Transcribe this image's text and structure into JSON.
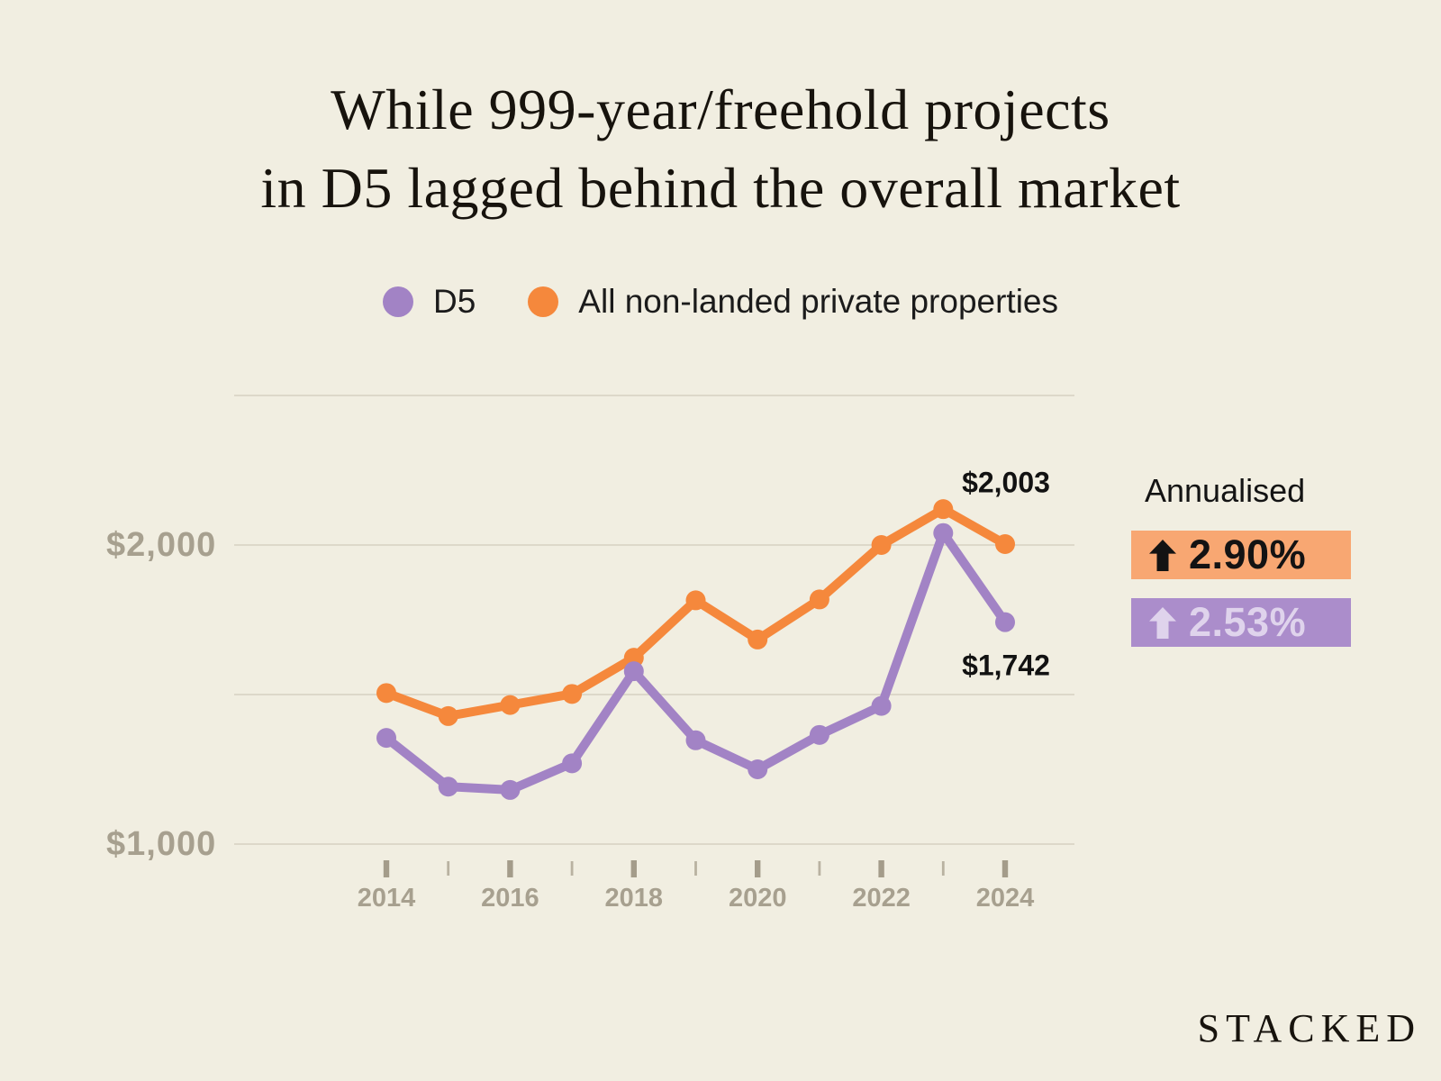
{
  "title": {
    "line1": "While 999-year/freehold projects",
    "line2": "in D5 lagged behind the overall market"
  },
  "legend": [
    {
      "label": "D5",
      "color": "#A283C5"
    },
    {
      "label": "All non-landed private properties",
      "color": "#F5883C"
    }
  ],
  "chart_data": {
    "type": "line",
    "title": "While 999-year/freehold projects in D5 lagged behind the overall market",
    "x": [
      2014,
      2015,
      2016,
      2017,
      2018,
      2019,
      2020,
      2021,
      2022,
      2023,
      2024
    ],
    "x_tick_labels": [
      "2014",
      "2016",
      "2018",
      "2020",
      "2022",
      "2024"
    ],
    "series": [
      {
        "id": "all",
        "name": "All non-landed private properties",
        "color": "#F5883C",
        "values": [
          1505,
          1428,
          1465,
          1502,
          1623,
          1815,
          1684,
          1818,
          2000,
          2120,
          2003
        ]
      },
      {
        "id": "d5",
        "name": "D5",
        "color": "#A283C5",
        "values": [
          1355,
          1192,
          1181,
          1270,
          1578,
          1347,
          1250,
          1365,
          1462,
          2040,
          1742
        ]
      }
    ],
    "ylim": [
      1000,
      2500
    ],
    "gridlines": [
      1000,
      1500,
      2000,
      2500
    ],
    "y_tick_labels": [
      "$1,000",
      "$2,000"
    ],
    "grid": true,
    "legend_position": "top",
    "annotations": [
      {
        "text": "$2,003",
        "series": "All non-landed private properties",
        "year": 2024
      },
      {
        "text": "$1,742",
        "series": "D5",
        "year": 2024
      }
    ]
  },
  "annualised": {
    "label": "Annualised",
    "items": [
      {
        "series": "All non-landed private properties",
        "arrow": "up",
        "value": "2.90%",
        "bg": "#F8A772",
        "text_color": "#131313"
      },
      {
        "series": "D5",
        "arrow": "up",
        "value": "2.53%",
        "bg": "#AB8DCB",
        "text_color": "#DFD3EC"
      }
    ]
  },
  "watermark": "STACKED",
  "theme": {
    "background": "#F1EEE1",
    "gridline": "#DDD8C9",
    "axis_label": "#A7A08F",
    "tick_major": "#A49C8A",
    "tick_minor": "#B9B2A1"
  }
}
